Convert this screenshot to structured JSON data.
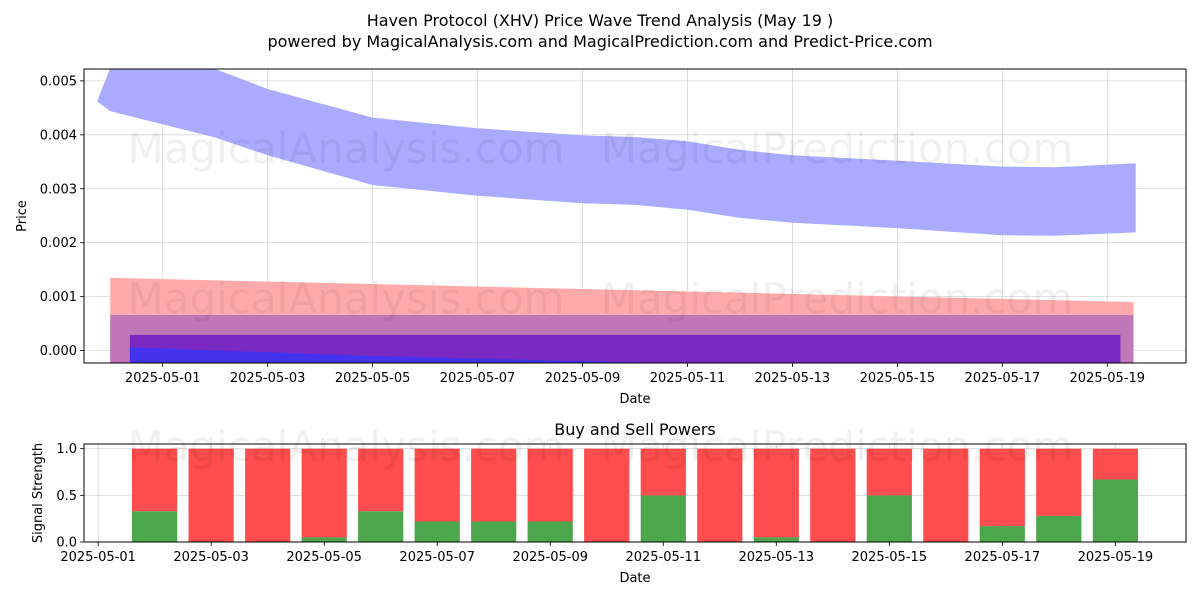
{
  "title_line1": "Haven Protocol (XHV) Price Wave Trend Analysis (May 19 )",
  "title_line2": "powered by MagicalAnalysis.com and MagicalPrediction.com and Predict-Price.com",
  "watermarks": [
    "MagicalAnalysis.com",
    "MagicalPrediction.com"
  ],
  "chart_data": [
    {
      "type": "area",
      "xlabel": "Date",
      "ylabel": "Price",
      "ylim": [
        -0.00023,
        0.00522
      ],
      "yticks": [
        0.0,
        0.001,
        0.002,
        0.003,
        0.004,
        0.005
      ],
      "ytick_labels": [
        "0.000",
        "0.001",
        "0.002",
        "0.003",
        "0.004",
        "0.005"
      ],
      "xlim": [
        "2025-04-29T12:00",
        "2025-05-20T12:00"
      ],
      "xticks": [
        "2025-05-01",
        "2025-05-03",
        "2025-05-05",
        "2025-05-07",
        "2025-05-09",
        "2025-05-11",
        "2025-05-13",
        "2025-05-15",
        "2025-05-17",
        "2025-05-19"
      ],
      "grid": true,
      "bands": [
        {
          "color": "#aaaaff",
          "points": [
            {
              "x": "2025-04-29T18:00",
              "upper": 0.00462,
              "lower": 0.00462
            },
            {
              "x": "2025-04-30T00:00",
              "upper": 0.00524,
              "lower": 0.00444
            },
            {
              "x": "2025-05-02T00:00",
              "upper": 0.00522,
              "lower": 0.00395
            },
            {
              "x": "2025-05-03T00:00",
              "upper": 0.00485,
              "lower": 0.00362
            },
            {
              "x": "2025-05-05T00:00",
              "upper": 0.00432,
              "lower": 0.00307
            },
            {
              "x": "2025-05-07T00:00",
              "upper": 0.00412,
              "lower": 0.00287
            },
            {
              "x": "2025-05-09T00:00",
              "upper": 0.00399,
              "lower": 0.00273
            },
            {
              "x": "2025-05-10T00:00",
              "upper": 0.00396,
              "lower": 0.0027
            },
            {
              "x": "2025-05-11T00:00",
              "upper": 0.00388,
              "lower": 0.00261
            },
            {
              "x": "2025-05-12T00:00",
              "upper": 0.00372,
              "lower": 0.00246
            },
            {
              "x": "2025-05-13T00:00",
              "upper": 0.00362,
              "lower": 0.00237
            },
            {
              "x": "2025-05-15T00:00",
              "upper": 0.00352,
              "lower": 0.00227
            },
            {
              "x": "2025-05-17T00:00",
              "upper": 0.00341,
              "lower": 0.00214
            },
            {
              "x": "2025-05-18T00:00",
              "upper": 0.0034,
              "lower": 0.00213
            },
            {
              "x": "2025-05-19T12:00",
              "upper": 0.00347,
              "lower": 0.00219
            },
            {
              "x": "2025-05-19T13:00",
              "upper": 0.00347,
              "lower": 0.00219
            }
          ]
        },
        {
          "color": "#ffaaaa",
          "points": [
            {
              "x": "2025-04-30T00:00",
              "upper": 0.00135,
              "lower": 7e-05
            },
            {
              "x": "2025-05-19T12:00",
              "upper": 0.0009,
              "lower": -0.00023
            }
          ]
        },
        {
          "color": "#aaaaff",
          "points": [
            {
              "x": "2025-04-30T00:00",
              "upper": 7e-05,
              "lower": -0.00023
            },
            {
              "x": "2025-05-02T00:00",
              "upper": 6e-05,
              "lower": -0.00023
            }
          ]
        },
        {
          "color": "#c177b7",
          "points": [
            {
              "x": "2025-04-30T00:00",
              "upper": 0.00066,
              "lower": -0.00023
            },
            {
              "x": "2025-05-19T12:00",
              "upper": 0.00066,
              "lower": -0.00023
            }
          ]
        },
        {
          "color": "#7a29c2",
          "points": [
            {
              "x": "2025-04-30T09:00",
              "upper": 0.00029,
              "lower": -0.00023
            },
            {
              "x": "2025-05-19T06:00",
              "upper": 0.00029,
              "lower": -0.00023
            }
          ]
        },
        {
          "color": "#4433ee",
          "points": [
            {
              "x": "2025-04-30T09:00",
              "upper": 6e-05,
              "lower": -0.00023
            },
            {
              "x": "2025-05-05T00:00",
              "upper": -0.0001,
              "lower": -0.00023
            },
            {
              "x": "2025-05-10T12:00",
              "upper": -0.00023,
              "lower": -0.00023
            }
          ]
        }
      ]
    },
    {
      "type": "bar",
      "title": "Buy and Sell Powers",
      "xlabel": "Date",
      "ylabel": "Signal Strength",
      "ylim": [
        0,
        1.05
      ],
      "yticks": [
        0.0,
        0.5,
        1.0
      ],
      "ytick_labels": [
        "0.0",
        "0.5",
        "1.0"
      ],
      "xlim": [
        "2025-04-30T18:00",
        "2025-05-20T06:00"
      ],
      "xticks": [
        "2025-05-01",
        "2025-05-03",
        "2025-05-05",
        "2025-05-07",
        "2025-05-09",
        "2025-05-11",
        "2025-05-13",
        "2025-05-15",
        "2025-05-17",
        "2025-05-19"
      ],
      "grid": true,
      "stacked": true,
      "categories": [
        "2025-05-02",
        "2025-05-03",
        "2025-05-04",
        "2025-05-05",
        "2025-05-06",
        "2025-05-07",
        "2025-05-08",
        "2025-05-09",
        "2025-05-10",
        "2025-05-11",
        "2025-05-12",
        "2025-05-13",
        "2025-05-14",
        "2025-05-15",
        "2025-05-16",
        "2025-05-17",
        "2025-05-18",
        "2025-05-19"
      ],
      "series": [
        {
          "color": "#4ca64c",
          "values": [
            0.33,
            0.0,
            0.0,
            0.05,
            0.33,
            0.22,
            0.22,
            0.22,
            0.0,
            0.5,
            0.0,
            0.05,
            0.0,
            0.5,
            0.0,
            0.17,
            0.28,
            0.67
          ]
        },
        {
          "color": "#ff4c4c",
          "values": [
            0.67,
            1.0,
            1.0,
            0.95,
            0.67,
            0.78,
            0.78,
            0.78,
            1.0,
            0.5,
            1.0,
            0.95,
            1.0,
            0.5,
            1.0,
            0.83,
            0.72,
            0.33
          ]
        }
      ]
    }
  ]
}
